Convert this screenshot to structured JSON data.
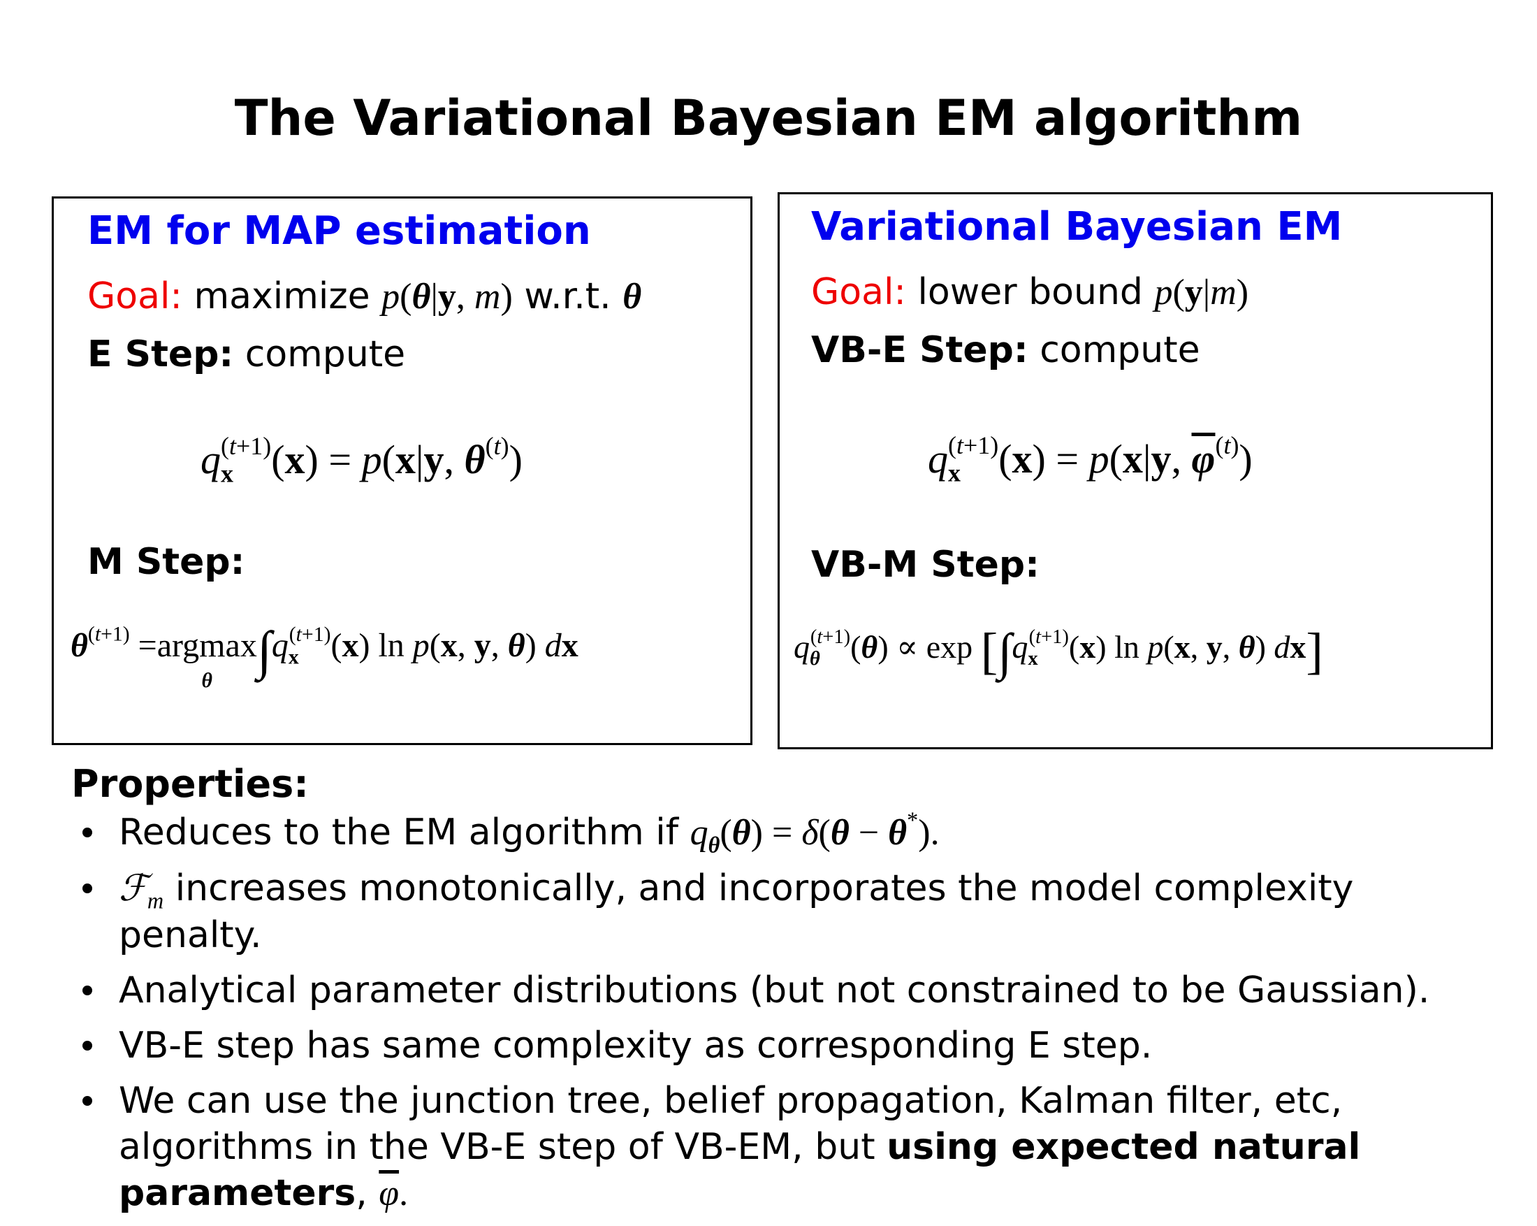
{
  "title": "The Variational Bayesian EM algorithm",
  "left_box": {
    "heading": "EM for MAP estimation",
    "goal_label": "Goal:",
    "goal_text": "maximize",
    "goal_expr": "p(θ|y, m)",
    "goal_suffix": "w.r.t.",
    "goal_var": "θ",
    "e_step_label": "E Step:",
    "e_step_text": "compute",
    "e_equation": "q_x^(t+1)(x) = p(x|y, θ^(t))",
    "m_step_label": "M Step:",
    "m_equation": "θ^(t+1) = argmax_θ ∫ q_x^(t+1)(x) ln p(x, y, θ) dx"
  },
  "right_box": {
    "heading": "Variational Bayesian EM",
    "goal_label": "Goal:",
    "goal_text": "lower bound",
    "goal_expr": "p(y|m)",
    "e_step_label": "VB-E Step:",
    "e_step_text": "compute",
    "e_equation": "q_x^(t+1)(x) = p(x|y, φ̄^(t))",
    "m_step_label": "VB-M Step:",
    "m_equation": "q_θ^(t+1)(θ) ∝ exp [ ∫ q_x^(t+1)(x) ln p(x, y, θ) dx ]"
  },
  "properties": {
    "title": "Properties:",
    "items": [
      {
        "text": "Reduces to the EM algorithm if",
        "math": "q_θ(θ) = δ(θ − θ*)."
      },
      {
        "math": "F_m",
        "text": "increases monotonically, and incorporates the model complexity penalty."
      },
      {
        "text": "Analytical parameter distributions (but not constrained to be Gaussian)."
      },
      {
        "text": "VB-E step has same complexity as corresponding E step."
      },
      {
        "text": "We can use the junction tree, belief propagation, Kalman filter, etc, algorithms in the VB-E step of VB-EM, but",
        "bold": "using expected natural parameters",
        "tail": ",",
        "math": "φ̄."
      }
    ]
  },
  "colors": {
    "heading": "#0000ee",
    "goal": "#ee0000"
  }
}
